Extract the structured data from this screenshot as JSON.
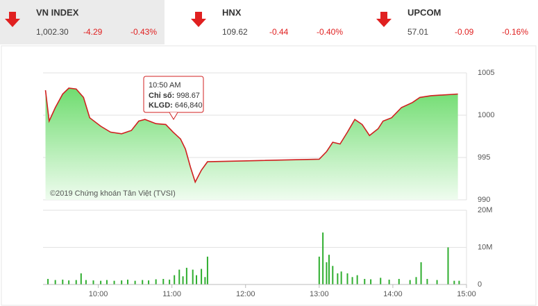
{
  "header": {
    "tickers": [
      {
        "name": "VN INDEX",
        "value": "1,002.30",
        "change": "-4.29",
        "percent": "-0.43%"
      },
      {
        "name": "HNX",
        "value": "109.62",
        "change": "-0.44",
        "percent": "-0.40%"
      },
      {
        "name": "UPCOM",
        "value": "57.01",
        "change": "-0.09",
        "percent": "-0.16%"
      }
    ]
  },
  "chart_data": [
    {
      "type": "area",
      "color": "#d01f1f",
      "fill": "#6fdc6f",
      "x": [
        557,
        560,
        565,
        571,
        576,
        582,
        588,
        593,
        602,
        610,
        619,
        627,
        633,
        638,
        647,
        655,
        661,
        667,
        671,
        675,
        679,
        684,
        689,
        718,
        780,
        786,
        791,
        797,
        803,
        809,
        815,
        821,
        828,
        832,
        839,
        847,
        856,
        862,
        871,
        893
      ],
      "values": [
        1002.95,
        999.3,
        1000.9,
        1002.5,
        1003.2,
        1003.1,
        1002.1,
        999.7,
        998.7,
        998.0,
        997.8,
        998.2,
        999.3,
        999.5,
        999.0,
        998.9,
        998.0,
        997.2,
        996.0,
        993.9,
        992.1,
        993.5,
        994.5,
        994.6,
        994.8,
        995.7,
        996.8,
        996.6,
        998.0,
        999.5,
        998.9,
        997.6,
        998.4,
        999.3,
        999.7,
        1000.9,
        1001.5,
        1002.1,
        1002.3,
        1002.5
      ],
      "xlim": [
        555,
        900
      ],
      "ylim": [
        990,
        1005
      ],
      "yticks": [
        990,
        995,
        1000,
        1005
      ],
      "grid": true,
      "annotation": {
        "time": "10:50 AM",
        "label1": "Chỉ số:",
        "value1": "998.67",
        "label2": "KLGD:",
        "value2": "646,840"
      },
      "credit": "©2019 Chứng khoán Tân Việt (TVSI)"
    },
    {
      "type": "bar",
      "color": "#2fae2f",
      "x": [
        559,
        565,
        571,
        576,
        582,
        586,
        590,
        596,
        602,
        607,
        613,
        619,
        624,
        630,
        636,
        641,
        647,
        653,
        658,
        662,
        666,
        669,
        672,
        677,
        680,
        684,
        687,
        689,
        780,
        783,
        786,
        788,
        791,
        795,
        798,
        803,
        807,
        811,
        817,
        822,
        830,
        837,
        845,
        854,
        859,
        863,
        868,
        876,
        885,
        890,
        894
      ],
      "values": [
        1.5,
        1.2,
        1.3,
        1.1,
        1.2,
        3,
        1.2,
        1.1,
        1.0,
        1.2,
        1.0,
        1.1,
        1.3,
        1.0,
        1.2,
        1.1,
        1.4,
        1.5,
        1.3,
        2.5,
        4,
        2.2,
        4.5,
        4,
        2.5,
        4.2,
        2,
        7.5,
        7.5,
        14,
        6,
        8,
        5,
        3,
        3.5,
        3,
        2,
        2.5,
        1.5,
        1.4,
        1.8,
        1.3,
        1.5,
        1.2,
        2,
        6,
        1.5,
        1.2,
        10,
        1,
        1
      ],
      "xlim": [
        555,
        900
      ],
      "ylim": [
        0,
        20
      ],
      "yticks": [
        0,
        {
          "value": 10,
          "label": "10M"
        },
        {
          "value": 20,
          "label": "20M"
        }
      ],
      "grid": true,
      "xticks": [
        {
          "value": 600,
          "label": "10:00"
        },
        {
          "value": 660,
          "label": "11:00"
        },
        {
          "value": 720,
          "label": "12:00"
        },
        {
          "value": 780,
          "label": "13:00"
        },
        {
          "value": 840,
          "label": "14:00"
        },
        {
          "value": 900,
          "label": "15:00"
        }
      ]
    }
  ]
}
